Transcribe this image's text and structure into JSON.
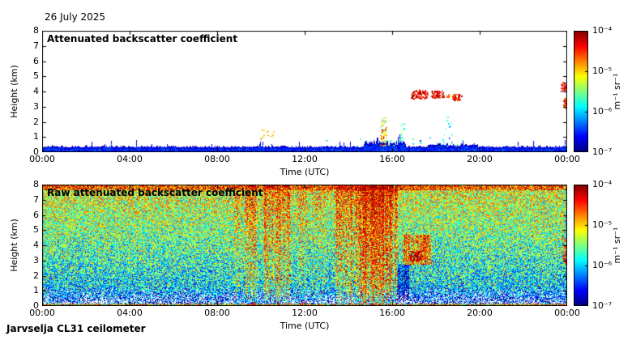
{
  "header": {
    "date": "26 July 2025"
  },
  "footer": {
    "instrument": "Jarvselja CL31 ceilometer"
  },
  "axes": {
    "x": {
      "label": "Time (UTC)",
      "ticks": [
        "00:00",
        "04:00",
        "08:00",
        "12:00",
        "16:00",
        "20:00",
        "00:00"
      ],
      "range_hours": [
        0,
        24
      ]
    },
    "y": {
      "label": "Height (km)",
      "ticks": [
        "8",
        "7",
        "6",
        "5",
        "4",
        "3",
        "2",
        "1",
        "0"
      ],
      "range_km": [
        0,
        8
      ]
    }
  },
  "colorbar": {
    "label": "m⁻¹ sr⁻¹",
    "ticks": [
      "10⁻⁴",
      "10⁻⁵",
      "10⁻⁶",
      "10⁻⁷"
    ],
    "scale": "log10",
    "colormap": "jet"
  },
  "chart_data": [
    {
      "type": "heatmap",
      "title": "Attenuated backscatter coefficient",
      "xlabel": "Time (UTC)",
      "ylabel": "Height (km)",
      "x_range_hours": [
        0,
        24
      ],
      "y_range_km": [
        0,
        8
      ],
      "value_units": "m⁻¹ sr⁻¹",
      "value_log10_range": [
        -7,
        -4
      ],
      "colormap": "jet",
      "background": "white (below detection threshold)",
      "surface_layer": {
        "description": "blue speckled aerosol/noise band hugging the surface all day, 0 to ~0.4 km",
        "base_top_km": 0.3,
        "jitter_km": 0.12,
        "spike_probability": 0.06,
        "spike_extra_km": 0.45,
        "log10_value_range": [
          -7.0,
          -6.3
        ],
        "enhanced": [
          {
            "time_hours": [
              14.7,
              16.6
            ],
            "extra_km": 0.28
          },
          {
            "time_hours": [
              17.6,
              19.9
            ],
            "extra_km": 0.13
          }
        ]
      },
      "features": [
        {
          "name": "cloud-band",
          "time_hours": [
            16.85,
            17.6
          ],
          "height_km": [
            3.55,
            4.15
          ],
          "log10_range": [
            -4.6,
            -4.0
          ],
          "points": 110
        },
        {
          "name": "cloud-band",
          "time_hours": [
            17.75,
            18.35
          ],
          "height_km": [
            3.6,
            4.05
          ],
          "log10_range": [
            -4.6,
            -4.05
          ],
          "points": 80
        },
        {
          "name": "cloud-wisp",
          "time_hours": [
            18.4,
            18.6
          ],
          "height_km": [
            3.65,
            3.9
          ],
          "log10_range": [
            -4.9,
            -4.4
          ],
          "points": 12
        },
        {
          "name": "cloud-band",
          "time_hours": [
            18.75,
            19.15
          ],
          "height_km": [
            3.45,
            3.85
          ],
          "log10_range": [
            -4.7,
            -4.1
          ],
          "points": 45
        },
        {
          "name": "cloud-right-edge-upper",
          "time_hours": [
            23.7,
            23.98
          ],
          "height_km": [
            3.95,
            4.65
          ],
          "log10_range": [
            -4.6,
            -4.0
          ],
          "points": 40
        },
        {
          "name": "cloud-right-edge-lower",
          "time_hours": [
            23.8,
            24.0
          ],
          "height_km": [
            2.85,
            3.6
          ],
          "log10_range": [
            -4.8,
            -4.15
          ],
          "points": 50
        },
        {
          "name": "precip-streak",
          "time_hours": [
            15.45,
            15.72
          ],
          "height_km": [
            0.45,
            2.3
          ],
          "log10_range": [
            -5.7,
            -4.3
          ],
          "points": 70
        },
        {
          "name": "drizzle-specks",
          "time_hours": [
            16.35,
            16.6
          ],
          "height_km": [
            0.7,
            2.1
          ],
          "log10_range": [
            -6.0,
            -5.0
          ],
          "points": 16
        },
        {
          "name": "specks-10utc",
          "time_hours": [
            9.95,
            10.65
          ],
          "height_km": [
            0.85,
            1.55
          ],
          "log10_range": [
            -5.3,
            -4.6
          ],
          "points": 16
        },
        {
          "name": "specks-cyan",
          "time_hours": [
            18.25,
            18.7
          ],
          "height_km": [
            0.6,
            2.45
          ],
          "log10_range": [
            -6.4,
            -5.5
          ],
          "points": 14
        },
        {
          "name": "low-specks",
          "time_hours": [
            12.4,
            19.5
          ],
          "height_km": [
            0.4,
            1.0
          ],
          "log10_range": [
            -6.6,
            -5.4
          ],
          "points": 30
        }
      ]
    },
    {
      "type": "heatmap",
      "title": "Raw attenuated backscatter coefficient",
      "xlabel": "Time (UTC)",
      "ylabel": "Height (km)",
      "x_range_hours": [
        0,
        24
      ],
      "y_range_km": [
        0,
        8
      ],
      "value_units": "m⁻¹ sr⁻¹",
      "value_log10_range": [
        -7,
        -4
      ],
      "colormap": "jet",
      "background": "dense green/cyan speckle noise filling the whole panel, white-blue speckle below ~1.2 km, orange-red fringe at top edge",
      "noise_model": {
        "base_bottom": 0.3,
        "base_top": 0.62,
        "spread": 0.52,
        "base_red_speckle": 0.015,
        "white_zone_top_km": 1.25,
        "white_max": 0.55,
        "white_zone_dim": 0.2,
        "surface_bright_km": 0.18,
        "top_band_km": 7.6,
        "top_boost": 0.16,
        "top_red_speckle": 0.12,
        "column_streak_multiplier": [
          0.35,
          1.6
        ]
      },
      "enhanced_segments": [
        {
          "name": "streaks-0900",
          "time_hours": [
            8.75,
            9.15
          ],
          "height_km": [
            0,
            8
          ],
          "boost": 0.06,
          "red_speckle": 0.04
        },
        {
          "name": "streaks-0930",
          "time_hours": [
            9.25,
            9.85
          ],
          "height_km": [
            0,
            8
          ],
          "boost": 0.11,
          "red_speckle": 0.1
        },
        {
          "name": "streaks-1030",
          "time_hours": [
            10.1,
            11.35
          ],
          "height_km": [
            0,
            8
          ],
          "boost": 0.13,
          "red_speckle": 0.13
        },
        {
          "name": "streaks-1145",
          "time_hours": [
            11.6,
            12.1
          ],
          "height_km": [
            0,
            8
          ],
          "boost": 0.05,
          "red_speckle": 0.04
        },
        {
          "name": "streaks-1230",
          "time_hours": [
            12.3,
            13.0
          ],
          "height_km": [
            0,
            8
          ],
          "boost": 0.04,
          "red_speckle": 0.03
        },
        {
          "name": "solar-noise-main",
          "time_hours": [
            13.35,
            16.25
          ],
          "height_km": [
            0,
            8
          ],
          "boost": 0.15,
          "red_speckle": 0.16
        },
        {
          "name": "solar-noise-core",
          "time_hours": [
            14.35,
            15.95
          ],
          "height_km": [
            0,
            8
          ],
          "boost": 0.07,
          "red_speckle": 0.08
        },
        {
          "name": "orange-patch-cloud",
          "time_hours": [
            16.45,
            17.75
          ],
          "height_km": [
            2.7,
            4.7
          ],
          "boost": 0.22,
          "red_speckle": 0.22
        },
        {
          "name": "blue-dip",
          "time_hours": [
            16.2,
            16.75
          ],
          "height_km": [
            0,
            2.7
          ],
          "boost": -0.24,
          "red_speckle": 0
        }
      ],
      "features": [
        {
          "name": "cloud-echo",
          "time_hours": [
            16.8,
            17.35
          ],
          "height_km": [
            3.0,
            3.65
          ],
          "log10_range": [
            -4.5,
            -4.0
          ],
          "points": 90
        },
        {
          "name": "cloud-right-edge",
          "time_hours": [
            23.75,
            24.0
          ],
          "height_km": [
            2.9,
            4.6
          ],
          "log10_range": [
            -4.8,
            -4.1
          ],
          "points": 60
        }
      ]
    }
  ]
}
